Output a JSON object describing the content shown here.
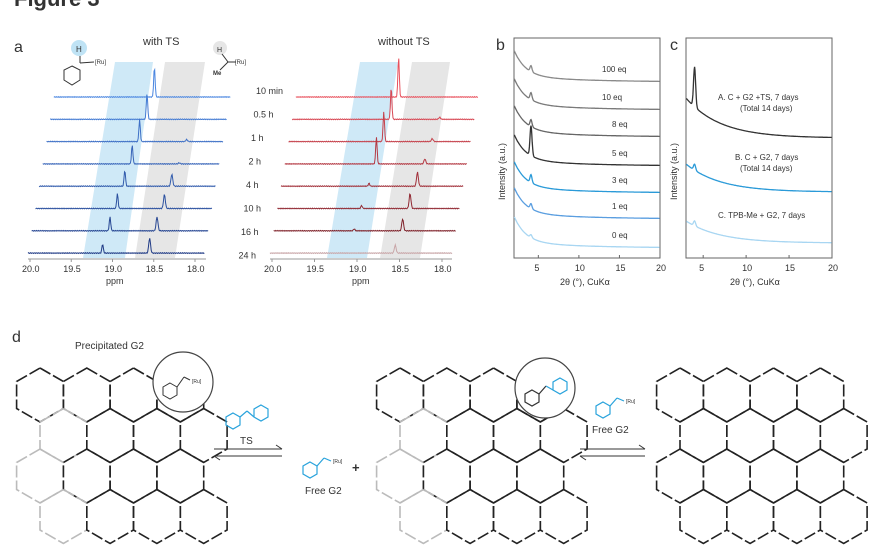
{
  "figure_title": "Figure 3",
  "colors": {
    "blue": "#29a3dc",
    "red": "#e0303a",
    "band_blue": "#cfe9f7",
    "band_gray": "#e6e6e6"
  },
  "chart_data": [
    {
      "panel": "a",
      "type": "line",
      "title": "with TS",
      "xlabel": "ppm",
      "xlim": [
        20.0,
        18.0
      ],
      "xticks": [
        "20.0",
        "19.5",
        "19.0",
        "18.5",
        "18.0"
      ],
      "series_labels": [
        "10 min",
        "0.5 h",
        "1 h",
        "2 h",
        "4 h",
        "10 h",
        "16 h",
        "24 h"
      ],
      "peak_ppm": [
        19.12,
        18.55
      ],
      "peak_heights_a": [
        30,
        26,
        22,
        19,
        16,
        15,
        14,
        9
      ],
      "peak_heights_b": [
        0,
        0,
        2,
        1,
        12,
        14,
        14,
        15
      ],
      "molecule_labels": [
        "H",
        "[Ru]",
        "H",
        "Me",
        "[Ru]"
      ]
    },
    {
      "panel": "a",
      "type": "line",
      "title": "without TS",
      "xlabel": "ppm",
      "xlim": [
        20.0,
        18.0
      ],
      "xticks": [
        "20.0",
        "19.5",
        "19.0",
        "18.5",
        "18.0"
      ],
      "peak_ppm": [
        19.12,
        18.55
      ],
      "peak_heights_a": [
        40,
        32,
        30,
        27,
        3,
        3,
        2,
        0
      ],
      "peak_heights_b": [
        0,
        2,
        3,
        5,
        14,
        15,
        12,
        8
      ]
    },
    {
      "panel": "b",
      "type": "line",
      "xlabel": "2θ (°), CuKα",
      "ylabel": "Intensity (a.u.)",
      "xlim": [
        2,
        20
      ],
      "xticks": [
        "5",
        "10",
        "15",
        "20"
      ],
      "series": [
        {
          "name": "100 eq",
          "peak": 6
        },
        {
          "name": "10 eq",
          "peak": 7
        },
        {
          "name": "8 eq",
          "peak": 7
        },
        {
          "name": "5 eq",
          "peak": 30
        },
        {
          "name": "3 eq",
          "peak": 8
        },
        {
          "name": "1 eq",
          "peak": 5
        },
        {
          "name": "0 eq",
          "peak": 3
        }
      ]
    },
    {
      "panel": "c",
      "type": "line",
      "xlabel": "2θ (°), CuKα",
      "ylabel": "Intensity (a.u.)",
      "xlim": [
        3,
        20
      ],
      "xticks": [
        "5",
        "10",
        "15",
        "20"
      ],
      "series": [
        {
          "name": "A. C + G2 +TS, 7 days",
          "sub": "(Total 14 days)",
          "peak": 40
        },
        {
          "name": "B. C + G2, 7 days",
          "sub": "(Total 14 days)",
          "peak": 6
        },
        {
          "name": "C. TPB-Me + G2, 7 days",
          "sub": "",
          "peak": 5
        }
      ]
    }
  ],
  "panels": {
    "a": "a",
    "b": "b",
    "c": "c",
    "d": "d"
  },
  "scheme": {
    "precipitated": "Precipitated G2",
    "ts": "TS",
    "free_g2_1": "Free G2",
    "plus": "+",
    "free_g2_2": "Free G2",
    "ru": "[Ru]"
  }
}
